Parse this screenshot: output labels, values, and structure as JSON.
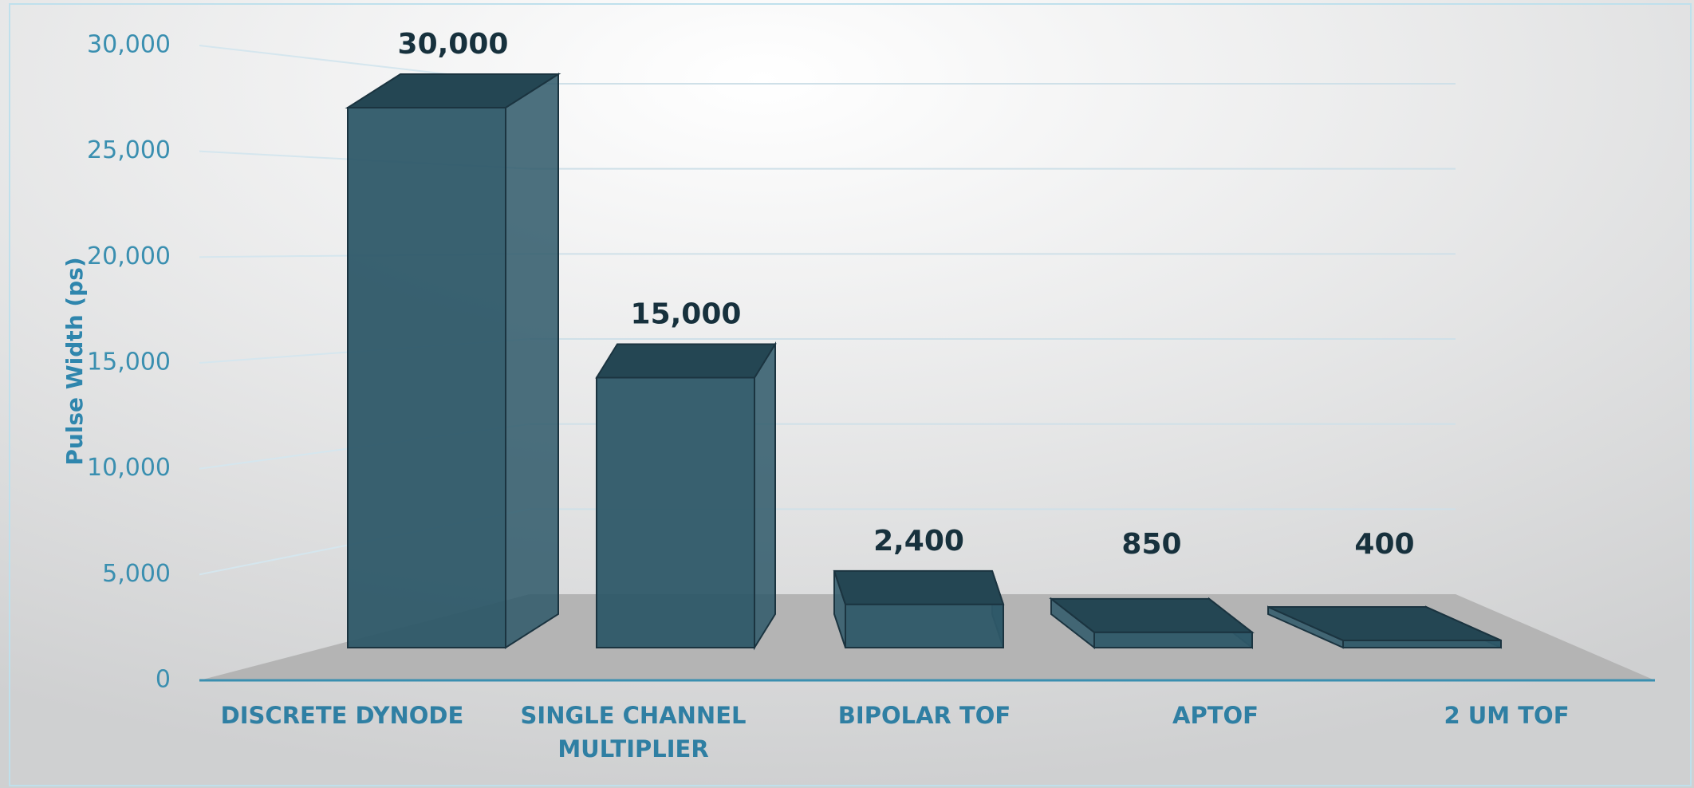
{
  "chart_data": {
    "type": "bar3d",
    "categories": [
      "DISCRETE DYNODE",
      "SINGLE CHANNEL MULTIPLIER",
      "BIPOLAR TOF",
      "APTOF",
      "2 UM TOF"
    ],
    "values": [
      30000,
      15000,
      2400,
      850,
      400
    ],
    "value_labels": [
      "30,000",
      "15,000",
      "2,400",
      "850",
      "400"
    ],
    "y_label": "Pulse Width (ps)",
    "color": "#2e5868",
    "ylim": [
      0,
      30000
    ],
    "yticks": [
      0,
      {
        "value": 5000,
        "label": "5,000"
      },
      {
        "value": 10000,
        "label": "10,000"
      },
      {
        "value": 15000,
        "label": "15,000"
      },
      {
        "value": 20000,
        "label": "20,000"
      },
      {
        "value": 25000,
        "label": "25,000"
      },
      {
        "value": 30000,
        "label": "30,000"
      }
    ],
    "grid": true
  }
}
